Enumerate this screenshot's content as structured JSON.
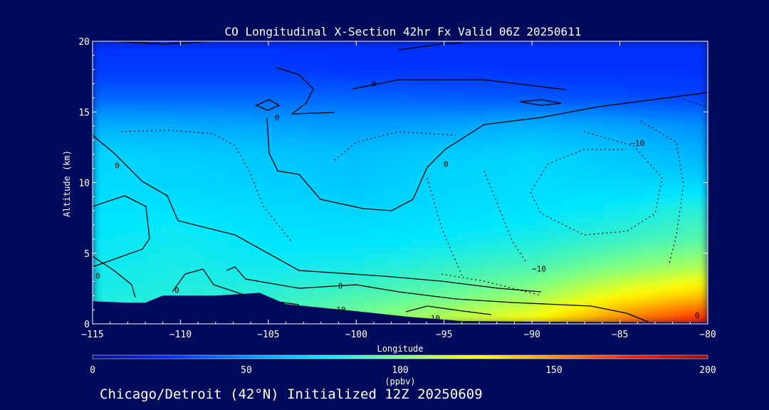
{
  "chart_data": {
    "type": "heatmap",
    "title": "CO Longitudinal X-Section 42hr  Fx Valid 06Z 20250611",
    "xlabel": "Longitude",
    "ylabel": "Altitude (km)",
    "xlim": [
      -115,
      -80
    ],
    "ylim": [
      0,
      20
    ],
    "x_ticks": [
      -115,
      -110,
      -105,
      -100,
      -95,
      -90,
      -85,
      -80
    ],
    "x_tick_labels": [
      "−115",
      "−110",
      "−105",
      "−100",
      "−95",
      "−90",
      "−85",
      "−80"
    ],
    "y_ticks": [
      0,
      5,
      10,
      15,
      20
    ],
    "y_tick_labels": [
      "0",
      "5",
      "10",
      "15",
      "20"
    ],
    "colorbar": {
      "unit": "(ppbv)",
      "range": [
        0,
        200
      ],
      "ticks": [
        0,
        50,
        100,
        150,
        200
      ],
      "tick_labels": [
        "0",
        "50",
        "100",
        "150",
        "200"
      ],
      "colors": [
        "#0a0a8c",
        "#0025ff",
        "#0090ff",
        "#00e6ff",
        "#80ff80",
        "#ffff00",
        "#ff9000",
        "#ff2000",
        "#a00000"
      ]
    },
    "field": {
      "x": [
        -115,
        -110,
        -105,
        -100,
        -95,
        -90,
        -85,
        -80
      ],
      "z": [
        0,
        2,
        4,
        6,
        8,
        10,
        12,
        14,
        16,
        18,
        20
      ],
      "co_ppbv_rows_by_altitude": [
        [
          85,
          88,
          90,
          100,
          115,
          130,
          160,
          185
        ],
        [
          80,
          82,
          84,
          90,
          95,
          105,
          125,
          140
        ],
        [
          78,
          80,
          78,
          80,
          85,
          90,
          100,
          110
        ],
        [
          76,
          78,
          74,
          74,
          76,
          80,
          86,
          92
        ],
        [
          74,
          74,
          72,
          70,
          72,
          74,
          78,
          84
        ],
        [
          72,
          70,
          68,
          66,
          70,
          72,
          70,
          70
        ],
        [
          70,
          68,
          66,
          64,
          68,
          70,
          66,
          60
        ],
        [
          60,
          58,
          56,
          54,
          56,
          60,
          56,
          50
        ],
        [
          40,
          40,
          40,
          40,
          38,
          36,
          34,
          32
        ],
        [
          30,
          30,
          30,
          28,
          28,
          28,
          28,
          28
        ],
        [
          28,
          28,
          28,
          28,
          28,
          28,
          28,
          28
        ]
      ]
    },
    "terrain_km": [
      [
        -115,
        1.6
      ],
      [
        -113,
        1.5
      ],
      [
        -112,
        1.5
      ],
      [
        -111,
        2.0
      ],
      [
        -108,
        2.0
      ],
      [
        -105.5,
        2.2
      ],
      [
        -104,
        1.4
      ],
      [
        -100,
        0.9
      ],
      [
        -97,
        0.5
      ],
      [
        -94,
        0.2
      ],
      [
        -90,
        0.15
      ],
      [
        -80,
        0.1
      ]
    ],
    "contour_labels": [
      {
        "text": "0",
        "lon": -113.6,
        "alt": 11.2
      },
      {
        "text": "0",
        "lon": -104.5,
        "alt": 14.6
      },
      {
        "text": "0",
        "lon": -94.9,
        "alt": 11.3
      },
      {
        "text": "0",
        "lon": -99.0,
        "alt": 17.0
      },
      {
        "text": "0",
        "lon": -114.7,
        "alt": 3.4
      },
      {
        "text": "0",
        "lon": -110.2,
        "alt": 2.4
      },
      {
        "text": "0",
        "lon": -100.9,
        "alt": 2.7
      },
      {
        "text": "−10",
        "lon": -84.0,
        "alt": 12.8
      },
      {
        "text": "−10",
        "lon": -89.6,
        "alt": 3.9
      },
      {
        "text": "−10",
        "lon": -101.0,
        "alt": 1.0
      },
      {
        "text": "10",
        "lon": -95.5,
        "alt": 0.4
      },
      {
        "text": "0",
        "lon": -80.6,
        "alt": 0.6
      }
    ]
  },
  "footer": "Chicago/Detroit (42°N) Initialized 12Z 20250609"
}
